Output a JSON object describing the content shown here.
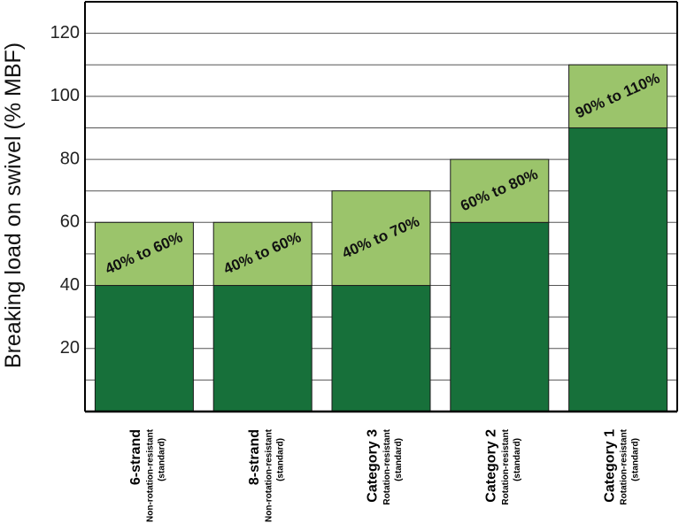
{
  "chart_data": {
    "type": "bar",
    "stacked": true,
    "ylabel": "Breaking load on swivel (% MBF)",
    "ylim": [
      0,
      130
    ],
    "yticks": [
      20,
      40,
      60,
      80,
      100,
      120
    ],
    "grid": true,
    "categories": [
      {
        "name": "6-strand",
        "line2": "Non-rotation-resistant",
        "line3": "(standard)"
      },
      {
        "name": "8-strand",
        "line2": "Non-rotation-resistant",
        "line3": "(standard)"
      },
      {
        "name": "Category 3",
        "line2": "Rotation-resistant",
        "line3": "(standard)"
      },
      {
        "name": "Category 2",
        "line2": "Rotation-resistant",
        "line3": "(standard)"
      },
      {
        "name": "Category 1",
        "line2": "Rotation-resistant",
        "line3": "(standard)"
      }
    ],
    "series": [
      {
        "values": [
          40,
          40,
          40,
          60,
          90
        ],
        "color": "#17703a"
      },
      {
        "values": [
          20,
          20,
          30,
          20,
          20
        ],
        "color": "#9bc46b"
      }
    ],
    "range_labels": [
      "40% to 60%",
      "40% to 60%",
      "40% to 70%",
      "60% to 80%",
      "90% to 110%"
    ]
  }
}
